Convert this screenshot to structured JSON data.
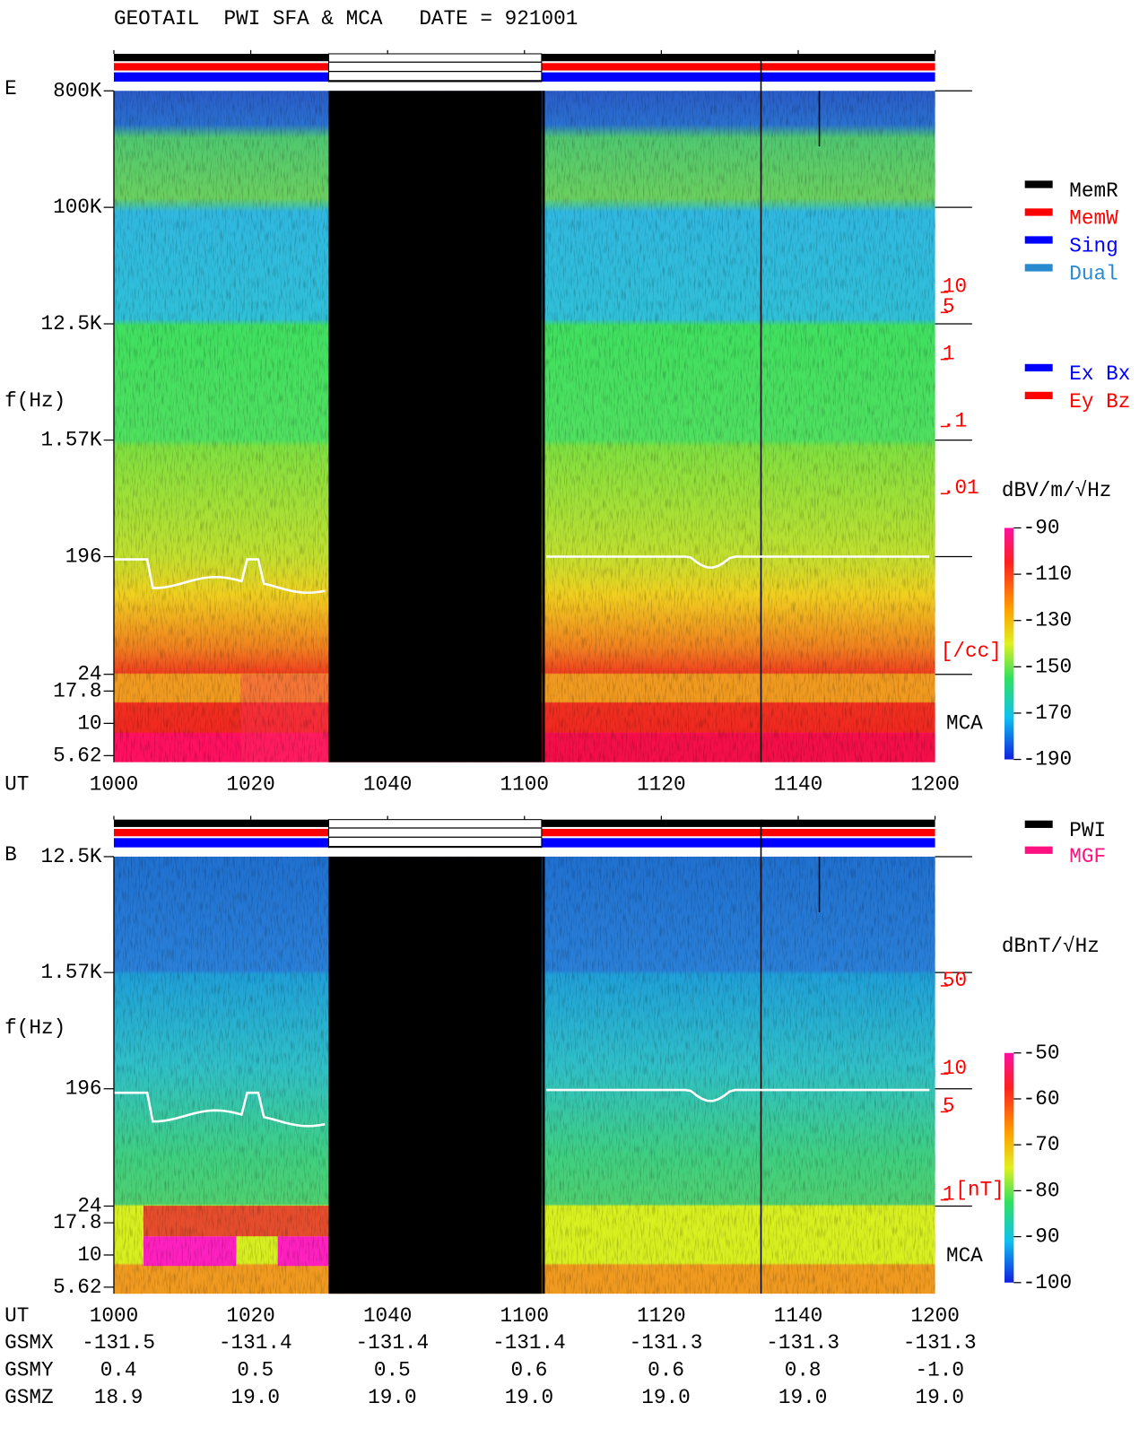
{
  "title": "GEOTAIL  PWI SFA & MCA   DATE = 921001",
  "chart_data": [
    {
      "type": "spectrogram",
      "panel_label": "E",
      "x_label": "UT",
      "y_label": "f(Hz)",
      "log_y": true,
      "xlim": [
        "10:00",
        "12:00"
      ],
      "xticks": [
        {
          "value": "10:00",
          "label": "1000"
        },
        {
          "value": "10:20",
          "label": "1020"
        },
        {
          "value": "10:40",
          "label": "1040"
        },
        {
          "value": "11:00",
          "label": "1100"
        },
        {
          "value": "11:20",
          "label": "1120"
        },
        {
          "value": "11:40",
          "label": "1140"
        },
        {
          "value": "12:00",
          "label": "1200"
        }
      ],
      "ylim": [
        5,
        800000
      ],
      "yticks": [
        {
          "value": 800000,
          "label": "800K"
        },
        {
          "value": 100000,
          "label": "100K"
        },
        {
          "value": 12500,
          "label": "12.5K"
        },
        {
          "value": 1570,
          "label": "1.57K"
        },
        196,
        24,
        17.8,
        10,
        5.62
      ],
      "mca_label": "MCA",
      "density_scale": {
        "color": "#ff0000",
        "lim": [
          1e-06,
          10000
        ],
        "ticks": [
          10,
          5,
          1,
          {
            "value": 0.1,
            "label": ".1"
          },
          {
            "value": 0.01,
            "label": ".01"
          }
        ],
        "unit": "[/cc]"
      },
      "colorbar": {
        "label": "dBV/m/√Hz",
        "lim": [
          -190,
          -90
        ],
        "ticks": [
          -90,
          -110,
          -130,
          -150,
          -170,
          -190
        ]
      },
      "legends": [
        [
          {
            "name": "MemR",
            "color": "#000000"
          },
          {
            "name": "MemW",
            "color": "#ff0000"
          },
          {
            "name": "Sing",
            "color": "#0000ff"
          },
          {
            "name": "Dual",
            "color": "#2a8ad0"
          }
        ],
        [
          {
            "name": "Ex Bx",
            "color": "#0000ff"
          },
          {
            "name": "Ey Bz",
            "color": "#ff0000"
          }
        ]
      ]
    },
    {
      "type": "spectrogram",
      "panel_label": "B",
      "x_label": "UT",
      "y_label": "f(Hz)",
      "log_y": true,
      "xlim": [
        "10:00",
        "12:00"
      ],
      "xticks": [
        {
          "value": "10:00",
          "label": "1000"
        },
        {
          "value": "10:20",
          "label": "1020"
        },
        {
          "value": "10:40",
          "label": "1040"
        },
        {
          "value": "11:00",
          "label": "1100"
        },
        {
          "value": "11:20",
          "label": "1120"
        },
        {
          "value": "11:40",
          "label": "1140"
        },
        {
          "value": "12:00",
          "label": "1200"
        }
      ],
      "ylim": [
        5,
        12500
      ],
      "yticks": [
        {
          "value": 12500,
          "label": "12.5K"
        },
        {
          "value": 1570,
          "label": "1.57K"
        },
        196,
        24,
        17.8,
        10,
        5.62
      ],
      "mca_label": "MCA",
      "density_scale": {
        "color": "#ff0000",
        "lim": [
          0.18,
          530
        ],
        "ticks": [
          50,
          10,
          5,
          1
        ],
        "unit": "[nT]"
      },
      "colorbar": {
        "label": "dBnT/√Hz",
        "lim": [
          -100,
          -50
        ],
        "ticks": [
          -50,
          -60,
          -70,
          -80,
          -90,
          -100
        ]
      },
      "legends": [
        [
          {
            "name": "PWI",
            "color": "#000000"
          },
          {
            "name": "MGF",
            "color": "#ff1080"
          }
        ]
      ]
    }
  ],
  "orbit": {
    "rows": [
      {
        "label": "GSMX",
        "values": [
          "-131.5",
          "-131.4",
          "-131.4",
          "-131.4",
          "-131.3",
          "-131.3",
          "-131.3"
        ]
      },
      {
        "label": "GSMY",
        "values": [
          "0.4",
          "0.5",
          "0.5",
          "0.6",
          "0.6",
          "0.8",
          "-1.0"
        ]
      },
      {
        "label": "GSMZ",
        "values": [
          "18.9",
          "19.0",
          "19.0",
          "19.0",
          "19.0",
          "19.0",
          "19.0"
        ]
      }
    ]
  }
}
